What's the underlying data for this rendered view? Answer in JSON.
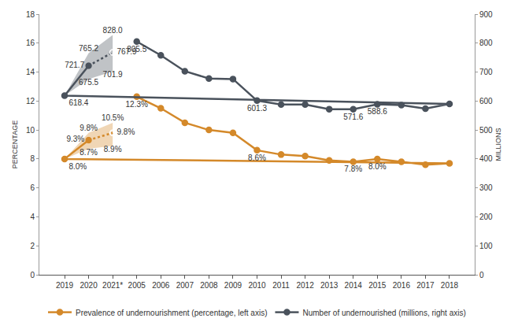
{
  "chart_data": {
    "type": "line",
    "categories": [
      "2005",
      "2006",
      "2007",
      "2008",
      "2009",
      "2010",
      "2011",
      "2012",
      "2013",
      "2014",
      "2015",
      "2016",
      "2017",
      "2018",
      "2019",
      "2020",
      "2021*"
    ],
    "ylabel": "PERCENTAGE",
    "y2label": "MILLIONS",
    "ylim": [
      0,
      18
    ],
    "yticks": [
      0,
      2,
      4,
      6,
      8,
      10,
      12,
      14,
      16,
      18
    ],
    "y2lim": [
      0,
      900
    ],
    "y2ticks": [
      0,
      100,
      200,
      300,
      400,
      500,
      600,
      700,
      800,
      900
    ],
    "grid": false,
    "legend": "bottom",
    "series": [
      {
        "name": "Prevalence of undernourishment (percentage, left axis)",
        "color": "#d4892a",
        "axis": "y",
        "marker": "circle",
        "line_style": "solid",
        "values": [
          12.3,
          11.5,
          10.5,
          10.0,
          9.8,
          8.6,
          8.3,
          8.2,
          7.9,
          7.8,
          8.0,
          7.8,
          7.6,
          7.7,
          8.0,
          9.3,
          null
        ],
        "value_labels": [
          "12.3%",
          null,
          null,
          null,
          null,
          "8.6%",
          null,
          null,
          null,
          "7.8%",
          "8.0%",
          null,
          null,
          null,
          "8.0%",
          "9.3%",
          null
        ],
        "lower": [
          null,
          null,
          null,
          null,
          null,
          null,
          null,
          null,
          null,
          null,
          null,
          null,
          null,
          null,
          8.0,
          8.7,
          8.9
        ],
        "lower_labels": [
          null,
          null,
          null,
          null,
          null,
          null,
          null,
          null,
          null,
          null,
          null,
          null,
          null,
          null,
          null,
          "8.7%",
          "8.9%"
        ],
        "upper": [
          null,
          null,
          null,
          null,
          null,
          null,
          null,
          null,
          null,
          null,
          null,
          null,
          null,
          null,
          8.0,
          9.8,
          10.5
        ],
        "upper_labels": [
          null,
          null,
          null,
          null,
          null,
          null,
          null,
          null,
          null,
          null,
          null,
          null,
          null,
          null,
          null,
          "9.8%",
          "10.5%"
        ]
      },
      {
        "name": "Prevalence of undernourishment (percentage, left axis)",
        "color": "#d4892a",
        "axis": "y",
        "marker": "open circle",
        "line_style": "dotted",
        "values": [
          null,
          null,
          null,
          null,
          null,
          null,
          null,
          null,
          null,
          null,
          null,
          null,
          null,
          null,
          null,
          9.3,
          9.8
        ],
        "value_labels": [
          null,
          null,
          null,
          null,
          null,
          null,
          null,
          null,
          null,
          null,
          null,
          null,
          null,
          null,
          null,
          null,
          "9.8%"
        ]
      },
      {
        "name": "Number of undernourished (millions, right axis)",
        "color": "#4a525c",
        "axis": "y2",
        "marker": "circle",
        "line_style": "solid",
        "values": [
          805.5,
          758,
          703,
          678,
          676,
          601.3,
          588,
          588,
          572,
          571.6,
          588.6,
          586,
          574,
          590,
          618.4,
          721.7,
          null
        ],
        "value_labels": [
          "805.5",
          null,
          null,
          null,
          null,
          "601.3",
          null,
          null,
          null,
          "571.6",
          "588.6",
          null,
          null,
          null,
          "618.4",
          "721.7",
          null
        ],
        "lower": [
          null,
          null,
          null,
          null,
          null,
          null,
          null,
          null,
          null,
          null,
          null,
          null,
          null,
          null,
          618.4,
          675.5,
          701.9
        ],
        "lower_labels": [
          null,
          null,
          null,
          null,
          null,
          null,
          null,
          null,
          null,
          null,
          null,
          null,
          null,
          null,
          null,
          "675.5",
          "701.9"
        ],
        "upper": [
          null,
          null,
          null,
          null,
          null,
          null,
          null,
          null,
          null,
          null,
          null,
          null,
          null,
          null,
          618.4,
          765.2,
          828.0
        ],
        "upper_labels": [
          null,
          null,
          null,
          null,
          null,
          null,
          null,
          null,
          null,
          null,
          null,
          null,
          null,
          null,
          null,
          "765.2",
          "828.0"
        ]
      },
      {
        "name": "Number of undernourished (millions, right axis)",
        "color": "#4a525c",
        "axis": "y2",
        "marker": "open circle",
        "line_style": "dotted",
        "values": [
          null,
          null,
          null,
          null,
          null,
          null,
          null,
          null,
          null,
          null,
          null,
          null,
          null,
          null,
          null,
          721.7,
          767.9
        ],
        "value_labels": [
          null,
          null,
          null,
          null,
          null,
          null,
          null,
          null,
          null,
          null,
          null,
          null,
          null,
          null,
          null,
          null,
          "767.9"
        ]
      }
    ]
  }
}
